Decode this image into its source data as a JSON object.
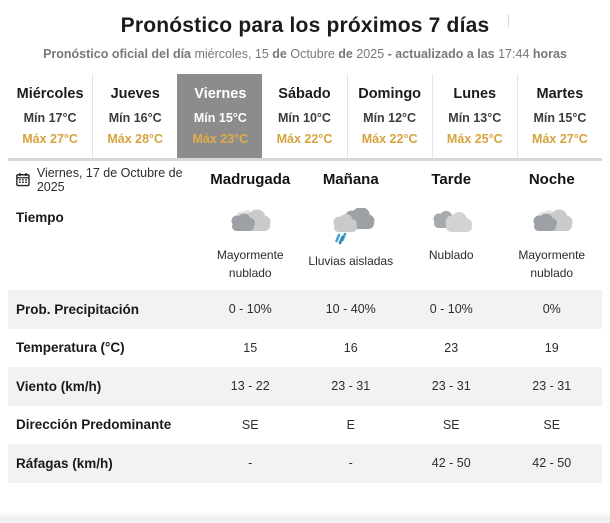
{
  "page": {
    "title": "Pronóstico para los próximos 7 días",
    "subtitle_segments": [
      {
        "text": "Pronóstico oficial del día ",
        "bold": true
      },
      {
        "text": "miércoles, 15 ",
        "bold": false
      },
      {
        "text": "de ",
        "bold": true
      },
      {
        "text": "Octubre ",
        "bold": false
      },
      {
        "text": "de ",
        "bold": true
      },
      {
        "text": "2025 ",
        "bold": false
      },
      {
        "text": "- actualizado a las ",
        "bold": true
      },
      {
        "text": "17:44 ",
        "bold": false
      },
      {
        "text": "horas",
        "bold": true
      }
    ]
  },
  "colors": {
    "max_accent": "#d6a33f",
    "selected_day_bg": "#8c8c8c",
    "row_stripe": "#f2f2f2"
  },
  "days": [
    {
      "name": "Miércoles",
      "min": "Mín 17°C",
      "max": "Máx 27°C",
      "selected": false
    },
    {
      "name": "Jueves",
      "min": "Mín 16°C",
      "max": "Máx 28°C",
      "selected": false
    },
    {
      "name": "Viernes",
      "min": "Mín 15°C",
      "max": "Máx 23°C",
      "selected": true
    },
    {
      "name": "Sábado",
      "min": "Mín 10°C",
      "max": "Máx 22°C",
      "selected": false
    },
    {
      "name": "Domingo",
      "min": "Mín 12°C",
      "max": "Máx 22°C",
      "selected": false
    },
    {
      "name": "Lunes",
      "min": "Mín 13°C",
      "max": "Máx 25°C",
      "selected": false
    },
    {
      "name": "Martes",
      "min": "Mín 15°C",
      "max": "Máx 27°C",
      "selected": false
    }
  ],
  "detail": {
    "date": "Viernes, 17 de Octubre de 2025",
    "columns": [
      "Madrugada",
      "Mañana",
      "Tarde",
      "Noche"
    ],
    "weather_label": "Tiempo",
    "weather": [
      {
        "icon": "mostly-cloudy-icon",
        "label": "Mayormente nublado"
      },
      {
        "icon": "isolated-showers-icon",
        "label": "Lluvias aisladas"
      },
      {
        "icon": "cloudy-icon",
        "label": "Nublado"
      },
      {
        "icon": "mostly-cloudy-icon",
        "label": "Mayormente nublado"
      }
    ],
    "rows": [
      {
        "label": "Prob. Precipitación",
        "values": [
          "0 - 10%",
          "10 - 40%",
          "0 - 10%",
          "0%"
        ]
      },
      {
        "label": "Temperatura (°C)",
        "values": [
          "15",
          "16",
          "23",
          "19"
        ]
      },
      {
        "label": "Viento (km/h)",
        "values": [
          "13 - 22",
          "23 - 31",
          "23 - 31",
          "23 - 31"
        ]
      },
      {
        "label": "Dirección Predominante",
        "values": [
          "SE",
          "E",
          "SE",
          "SE"
        ]
      },
      {
        "label": "Ráfagas (km/h)",
        "values": [
          "-",
          "-",
          "42 - 50",
          "42 - 50"
        ]
      }
    ]
  }
}
